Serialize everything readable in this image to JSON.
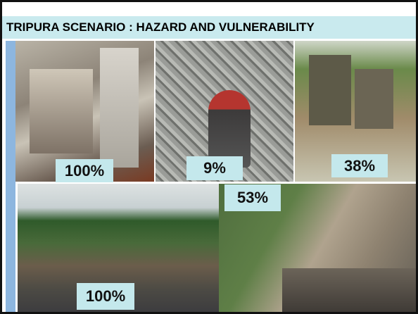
{
  "header": {
    "title": "TRIPURA SCENARIO : HAZARD AND VULNERABILITY"
  },
  "photos": [
    {
      "label": "100%"
    },
    {
      "label": "9%"
    },
    {
      "label": "38%"
    },
    {
      "label": "53%"
    },
    {
      "label": "100%"
    }
  ]
}
